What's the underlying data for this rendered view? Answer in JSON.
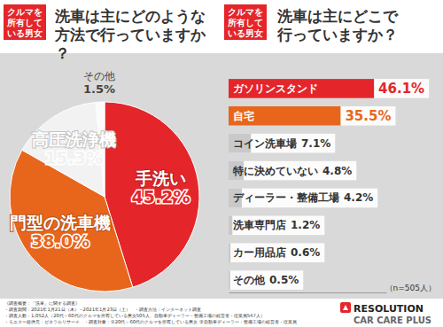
{
  "chart_data": [
    {
      "type": "pie",
      "subtitle": "クルマを所有している男女",
      "title": "洗車は主にどのような方法で行っていますか？",
      "categories": [
        "手洗い",
        "門型の洗車機",
        "高圧洗浄機",
        "その他"
      ],
      "values": [
        45.2,
        38.0,
        15.3,
        1.5
      ],
      "value_labels": [
        "45.2%",
        "38.0%",
        "15.3%",
        "1.5%"
      ],
      "colors": [
        "#e4262b",
        "#e8661c",
        "#f2f2f2",
        "#fbfbfb"
      ],
      "data_labels": true
    },
    {
      "type": "bar",
      "orientation": "horizontal",
      "subtitle": "クルマを所有している男女",
      "title": "洗車は主にどこで行っていますか？",
      "categories": [
        "ガソリンスタンド",
        "自宅",
        "コイン洗車場",
        "特に決めていない",
        "ディーラー・整備工場",
        "洗車専門店",
        "カー用品店",
        "その他"
      ],
      "values": [
        46.1,
        35.5,
        7.1,
        4.8,
        4.2,
        1.2,
        0.6,
        0.5
      ],
      "value_labels": [
        "46.1%",
        "35.5%",
        "7.1%",
        "4.8%",
        "4.2%",
        "1.2%",
        "0.6%",
        "0.5%"
      ],
      "colors": [
        "#e4262b",
        "#e8661c",
        "#c9c9c9",
        "#c9c9c9",
        "#c9c9c9",
        "#c9c9c9",
        "#c9c9c9",
        "#c9c9c9"
      ],
      "xlim": [
        0,
        50
      ],
      "tick_labels": false,
      "data_labels": true,
      "annotations": [
        "（n=505人）"
      ]
    }
  ],
  "footer": {
    "notes": [
      "《調査概要：「洗車」に関する調査》",
      "・調査期間：2021年1月21日（木）～2021年1月23日（土）　・調査方法：インターネット調査",
      "・調査人数：1,052人（20代～60代のクルマを所有している男女505人、自動車ディーラー・整備工場の経営者・従業員547人）",
      "・モニター提供元：ゼネラルリサーチ　・調査対象：①20代～60代のクルマを所有している男女 ②自動車ディーラー・整備工場の経営者・従業員"
    ],
    "logos": [
      "RESOLUTION",
      "CAR CARE PLUS"
    ]
  }
}
